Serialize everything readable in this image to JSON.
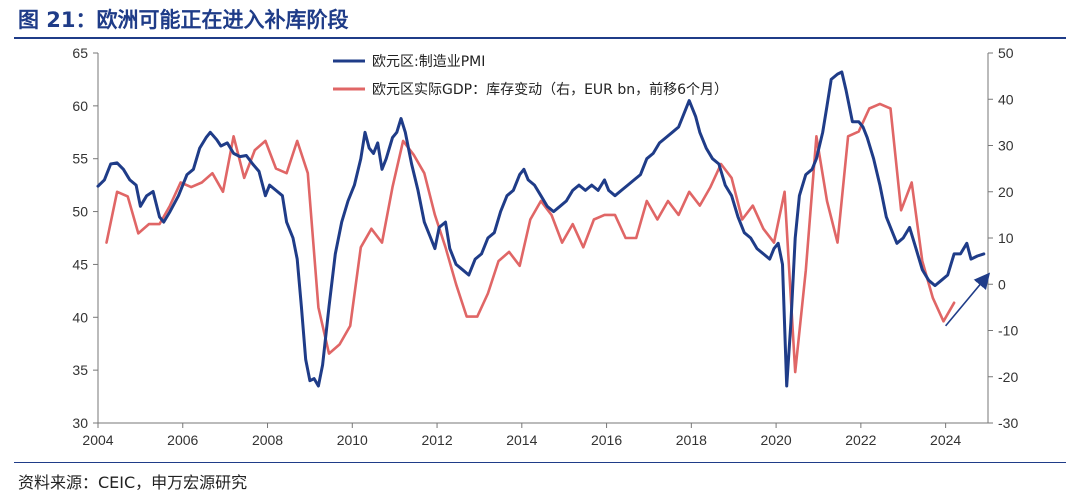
{
  "figure": {
    "title": "图 21：欧洲可能正在进入补库阶段",
    "source": "资料来源：CEIC，申万宏源研究"
  },
  "colors": {
    "pmi": "#1f3c88",
    "gdp": "#e06666",
    "arrow": "#1f3c88"
  },
  "chart_data": {
    "type": "line",
    "title": "",
    "xlabel": "",
    "ylabel_left": "",
    "ylabel_right": "",
    "x_range": [
      2004,
      2025
    ],
    "x_ticks": [
      "2004",
      "2006",
      "2008",
      "2010",
      "2012",
      "2014",
      "2016",
      "2018",
      "2020",
      "2022",
      "2024"
    ],
    "y_left_range": [
      30,
      65
    ],
    "y_left_ticks": [
      "30",
      "35",
      "40",
      "45",
      "50",
      "55",
      "60",
      "65"
    ],
    "y_right_range": [
      -30,
      50
    ],
    "y_right_ticks": [
      "-30",
      "-20",
      "-10",
      "0",
      "10",
      "20",
      "30",
      "40",
      "50"
    ],
    "grid": false,
    "legend_position": "top-center",
    "series": [
      {
        "name": "欧元区:制造业PMI",
        "axis": "left",
        "color": "#1f3c88",
        "points": [
          [
            2004.0,
            52.4
          ],
          [
            2004.15,
            53.0
          ],
          [
            2004.3,
            54.5
          ],
          [
            2004.45,
            54.6
          ],
          [
            2004.6,
            54.0
          ],
          [
            2004.75,
            53.0
          ],
          [
            2004.9,
            52.5
          ],
          [
            2005.0,
            50.5
          ],
          [
            2005.15,
            51.5
          ],
          [
            2005.3,
            51.9
          ],
          [
            2005.45,
            49.5
          ],
          [
            2005.55,
            49.0
          ],
          [
            2005.7,
            50.0
          ],
          [
            2005.9,
            51.5
          ],
          [
            2006.0,
            52.5
          ],
          [
            2006.1,
            53.5
          ],
          [
            2006.25,
            54.0
          ],
          [
            2006.4,
            56.0
          ],
          [
            2006.55,
            57.0
          ],
          [
            2006.65,
            57.5
          ],
          [
            2006.8,
            56.8
          ],
          [
            2006.9,
            56.2
          ],
          [
            2007.05,
            56.5
          ],
          [
            2007.2,
            55.5
          ],
          [
            2007.35,
            55.2
          ],
          [
            2007.5,
            55.3
          ],
          [
            2007.65,
            54.5
          ],
          [
            2007.8,
            53.8
          ],
          [
            2007.95,
            51.5
          ],
          [
            2008.05,
            52.5
          ],
          [
            2008.2,
            52.0
          ],
          [
            2008.35,
            51.5
          ],
          [
            2008.45,
            49.0
          ],
          [
            2008.6,
            47.5
          ],
          [
            2008.7,
            45.5
          ],
          [
            2008.8,
            41.0
          ],
          [
            2008.9,
            36.0
          ],
          [
            2009.0,
            34.0
          ],
          [
            2009.1,
            34.2
          ],
          [
            2009.2,
            33.5
          ],
          [
            2009.3,
            35.5
          ],
          [
            2009.45,
            41.0
          ],
          [
            2009.6,
            46.0
          ],
          [
            2009.75,
            49.0
          ],
          [
            2009.9,
            51.0
          ],
          [
            2010.05,
            52.5
          ],
          [
            2010.2,
            55.0
          ],
          [
            2010.3,
            57.5
          ],
          [
            2010.4,
            56.0
          ],
          [
            2010.5,
            55.5
          ],
          [
            2010.6,
            56.5
          ],
          [
            2010.7,
            54.0
          ],
          [
            2010.8,
            55.0
          ],
          [
            2010.95,
            57.0
          ],
          [
            2011.05,
            57.5
          ],
          [
            2011.15,
            58.8
          ],
          [
            2011.25,
            57.5
          ],
          [
            2011.4,
            54.5
          ],
          [
            2011.55,
            52.0
          ],
          [
            2011.7,
            49.0
          ],
          [
            2011.85,
            47.5
          ],
          [
            2011.95,
            46.5
          ],
          [
            2012.05,
            48.5
          ],
          [
            2012.2,
            49.0
          ],
          [
            2012.3,
            46.5
          ],
          [
            2012.45,
            45.0
          ],
          [
            2012.6,
            44.5
          ],
          [
            2012.75,
            44.0
          ],
          [
            2012.9,
            45.5
          ],
          [
            2013.05,
            46.0
          ],
          [
            2013.2,
            47.5
          ],
          [
            2013.35,
            48.0
          ],
          [
            2013.5,
            50.0
          ],
          [
            2013.65,
            51.5
          ],
          [
            2013.8,
            52.0
          ],
          [
            2013.95,
            53.5
          ],
          [
            2014.05,
            54.0
          ],
          [
            2014.15,
            53.0
          ],
          [
            2014.3,
            52.5
          ],
          [
            2014.45,
            51.5
          ],
          [
            2014.6,
            50.5
          ],
          [
            2014.75,
            50.0
          ],
          [
            2014.9,
            50.5
          ],
          [
            2015.05,
            51.0
          ],
          [
            2015.2,
            52.0
          ],
          [
            2015.35,
            52.5
          ],
          [
            2015.5,
            52.0
          ],
          [
            2015.65,
            52.5
          ],
          [
            2015.8,
            52.0
          ],
          [
            2015.95,
            53.0
          ],
          [
            2016.05,
            52.0
          ],
          [
            2016.2,
            51.5
          ],
          [
            2016.35,
            52.0
          ],
          [
            2016.5,
            52.5
          ],
          [
            2016.65,
            53.0
          ],
          [
            2016.8,
            53.5
          ],
          [
            2016.95,
            55.0
          ],
          [
            2017.1,
            55.5
          ],
          [
            2017.25,
            56.5
          ],
          [
            2017.4,
            57.0
          ],
          [
            2017.55,
            57.5
          ],
          [
            2017.7,
            58.0
          ],
          [
            2017.85,
            59.5
          ],
          [
            2017.95,
            60.5
          ],
          [
            2018.1,
            59.0
          ],
          [
            2018.2,
            57.5
          ],
          [
            2018.35,
            56.0
          ],
          [
            2018.5,
            55.0
          ],
          [
            2018.65,
            54.5
          ],
          [
            2018.8,
            52.5
          ],
          [
            2018.95,
            51.5
          ],
          [
            2019.1,
            49.5
          ],
          [
            2019.25,
            48.0
          ],
          [
            2019.4,
            47.5
          ],
          [
            2019.55,
            46.5
          ],
          [
            2019.7,
            46.0
          ],
          [
            2019.85,
            45.5
          ],
          [
            2019.95,
            46.5
          ],
          [
            2020.05,
            47.0
          ],
          [
            2020.15,
            45.0
          ],
          [
            2020.25,
            33.5
          ],
          [
            2020.35,
            39.5
          ],
          [
            2020.45,
            47.5
          ],
          [
            2020.55,
            51.5
          ],
          [
            2020.7,
            53.5
          ],
          [
            2020.85,
            54.0
          ],
          [
            2020.95,
            55.0
          ],
          [
            2021.1,
            57.5
          ],
          [
            2021.2,
            60.0
          ],
          [
            2021.3,
            62.5
          ],
          [
            2021.45,
            63.0
          ],
          [
            2021.55,
            63.2
          ],
          [
            2021.65,
            61.5
          ],
          [
            2021.8,
            58.5
          ],
          [
            2021.95,
            58.5
          ],
          [
            2022.05,
            58.0
          ],
          [
            2022.15,
            57.0
          ],
          [
            2022.3,
            55.0
          ],
          [
            2022.45,
            52.5
          ],
          [
            2022.6,
            49.5
          ],
          [
            2022.75,
            48.0
          ],
          [
            2022.85,
            47.0
          ],
          [
            2023.0,
            47.5
          ],
          [
            2023.15,
            48.5
          ],
          [
            2023.3,
            46.5
          ],
          [
            2023.45,
            44.5
          ],
          [
            2023.6,
            43.5
          ],
          [
            2023.75,
            43.0
          ],
          [
            2023.9,
            43.5
          ],
          [
            2024.05,
            44.0
          ],
          [
            2024.2,
            46.0
          ],
          [
            2024.35,
            46.0
          ],
          [
            2024.5,
            47.0
          ],
          [
            2024.6,
            45.5
          ],
          [
            2024.75,
            45.8
          ],
          [
            2024.9,
            46.0
          ]
        ]
      },
      {
        "name": "欧元区实际GDP：库存变动（右，EUR bn，前移6个月）",
        "axis": "right",
        "color": "#e06666",
        "points": [
          [
            2004.2,
            9
          ],
          [
            2004.45,
            20
          ],
          [
            2004.7,
            19
          ],
          [
            2004.95,
            11
          ],
          [
            2005.2,
            13
          ],
          [
            2005.45,
            13
          ],
          [
            2005.7,
            17
          ],
          [
            2005.95,
            22
          ],
          [
            2006.2,
            21
          ],
          [
            2006.45,
            22
          ],
          [
            2006.7,
            24
          ],
          [
            2006.95,
            20
          ],
          [
            2007.2,
            32
          ],
          [
            2007.45,
            23
          ],
          [
            2007.7,
            29
          ],
          [
            2007.95,
            31
          ],
          [
            2008.2,
            25
          ],
          [
            2008.45,
            24
          ],
          [
            2008.7,
            31
          ],
          [
            2008.95,
            24
          ],
          [
            2009.2,
            -5
          ],
          [
            2009.45,
            -15
          ],
          [
            2009.7,
            -13
          ],
          [
            2009.95,
            -9
          ],
          [
            2010.2,
            8
          ],
          [
            2010.45,
            12
          ],
          [
            2010.7,
            9
          ],
          [
            2010.95,
            21
          ],
          [
            2011.2,
            31
          ],
          [
            2011.45,
            28
          ],
          [
            2011.7,
            24
          ],
          [
            2011.95,
            15
          ],
          [
            2012.2,
            8
          ],
          [
            2012.45,
            0
          ],
          [
            2012.7,
            -7
          ],
          [
            2012.95,
            -7
          ],
          [
            2013.2,
            -2
          ],
          [
            2013.45,
            5
          ],
          [
            2013.7,
            7
          ],
          [
            2013.95,
            4
          ],
          [
            2014.2,
            14
          ],
          [
            2014.45,
            18
          ],
          [
            2014.7,
            15
          ],
          [
            2014.95,
            9
          ],
          [
            2015.2,
            13
          ],
          [
            2015.45,
            8
          ],
          [
            2015.7,
            14
          ],
          [
            2015.95,
            15
          ],
          [
            2016.2,
            15
          ],
          [
            2016.45,
            10
          ],
          [
            2016.7,
            10
          ],
          [
            2016.95,
            18
          ],
          [
            2017.2,
            14
          ],
          [
            2017.45,
            18
          ],
          [
            2017.7,
            15
          ],
          [
            2017.95,
            20
          ],
          [
            2018.2,
            17
          ],
          [
            2018.45,
            21
          ],
          [
            2018.7,
            26
          ],
          [
            2018.95,
            23
          ],
          [
            2019.2,
            14
          ],
          [
            2019.45,
            17
          ],
          [
            2019.7,
            12
          ],
          [
            2019.95,
            9
          ],
          [
            2020.2,
            20
          ],
          [
            2020.45,
            -19
          ],
          [
            2020.7,
            3
          ],
          [
            2020.95,
            32
          ],
          [
            2021.2,
            18
          ],
          [
            2021.45,
            9
          ],
          [
            2021.7,
            32
          ],
          [
            2021.95,
            33
          ],
          [
            2022.2,
            38
          ],
          [
            2022.45,
            39
          ],
          [
            2022.7,
            38
          ],
          [
            2022.95,
            16
          ],
          [
            2023.2,
            22
          ],
          [
            2023.45,
            5
          ],
          [
            2023.7,
            -3
          ],
          [
            2023.95,
            -8
          ],
          [
            2024.2,
            -4
          ]
        ]
      }
    ],
    "annotations": [
      {
        "type": "arrow",
        "from": [
          2024.0,
          -9
        ],
        "to": [
          2025.0,
          2
        ],
        "color": "#1f3c88"
      }
    ]
  }
}
